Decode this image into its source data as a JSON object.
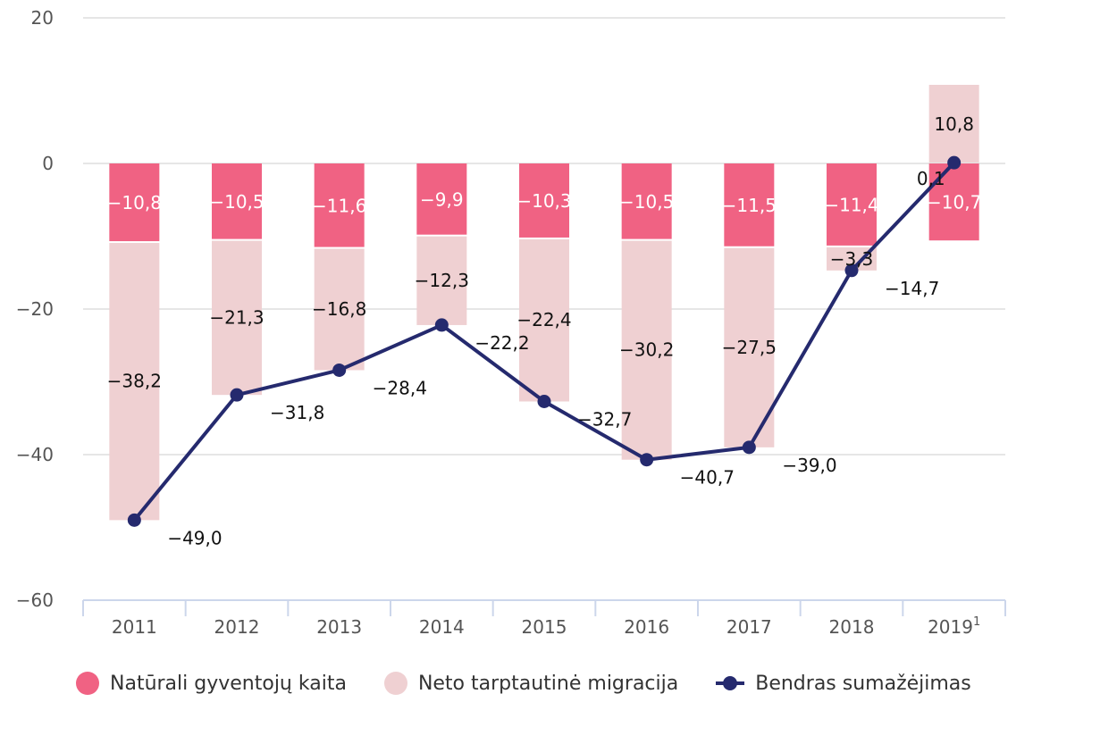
{
  "chart_data": {
    "type": "bar",
    "subtype": "stacked-bar-with-line",
    "title": "",
    "xlabel": "",
    "ylabel": "",
    "categories": [
      "2011",
      "2012",
      "2013",
      "2014",
      "2015",
      "2016",
      "2017",
      "2018",
      "2019"
    ],
    "category_superscripts": [
      "",
      "",
      "",
      "",
      "",
      "",
      "",
      "",
      "1"
    ],
    "ylim": [
      -60,
      20
    ],
    "yticks": [
      20,
      0,
      -20,
      -40,
      -60
    ],
    "ytick_labels": [
      "20",
      "0",
      "−20",
      "−40",
      "−60"
    ],
    "grid": true,
    "legend_position": "bottom",
    "series": [
      {
        "name": "Natūrali gyventojų kaita",
        "type": "bar",
        "color": "#f06283",
        "label_color": "#ffffff",
        "values": [
          -10.8,
          -10.5,
          -11.6,
          -9.9,
          -10.3,
          -10.5,
          -11.5,
          -11.4,
          -10.7
        ],
        "labels": [
          "−10,8",
          "−10,5",
          "−11,6",
          "−9,9",
          "−10,3",
          "−10,5",
          "−11,5",
          "−11,4",
          "−10,7"
        ]
      },
      {
        "name": "Neto tarptautinė migracija",
        "type": "bar",
        "color": "#efd0d2",
        "label_color": "#111111",
        "values": [
          -38.2,
          -21.3,
          -16.8,
          -12.3,
          -22.4,
          -30.2,
          -27.5,
          -3.3,
          10.8
        ],
        "labels": [
          "−38,2",
          "−21,3",
          "−16,8",
          "−12,3",
          "−22,4",
          "−30,2",
          "−27,5",
          "−3,3",
          "10,8"
        ]
      },
      {
        "name": "Bendras sumažėjimas",
        "type": "line",
        "color": "#252a6e",
        "label_color": "#111111",
        "values": [
          -49.0,
          -31.8,
          -28.4,
          -22.2,
          -32.7,
          -40.7,
          -39.0,
          -14.7,
          0.1
        ],
        "labels": [
          "−49,0",
          "−31,8",
          "−28,4",
          "−22,2",
          "−32,7",
          "−40,7",
          "−39,0",
          "−14,7",
          "0,1"
        ]
      }
    ]
  },
  "colors": {
    "grid": "#e6e6e6",
    "axis": "#ccd6eb",
    "tick_text": "#555555"
  }
}
